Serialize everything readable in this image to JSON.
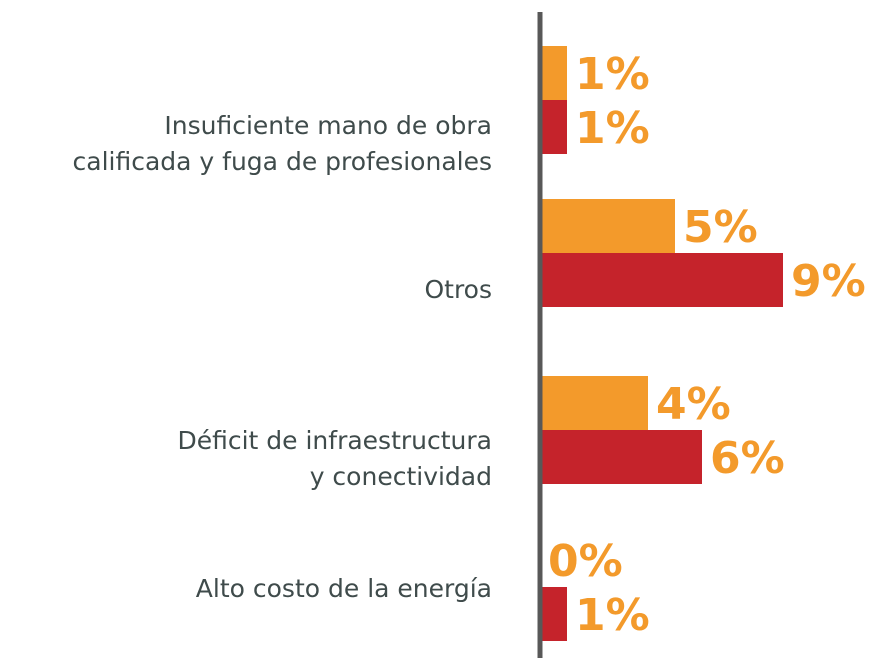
{
  "chart_data": {
    "type": "bar",
    "orientation": "horizontal",
    "categories": [
      "Insuficiente mano de obra\ncalificada y fuga de profesionales",
      "Otros",
      "Déficit de infraestructura\ny conectividad",
      "Alto costo de la energía"
    ],
    "series": [
      {
        "color": "#f39a2b",
        "values": [
          1,
          5,
          4,
          0
        ],
        "value_labels": [
          "1%",
          "5%",
          "4%",
          "0%"
        ]
      },
      {
        "color": "#c5232b",
        "values": [
          1,
          9,
          6,
          1
        ],
        "value_labels": [
          "1%",
          "9%",
          "6%",
          "1%"
        ]
      }
    ],
    "label_color": "#f39a2b",
    "xlim": [
      0,
      10
    ]
  }
}
